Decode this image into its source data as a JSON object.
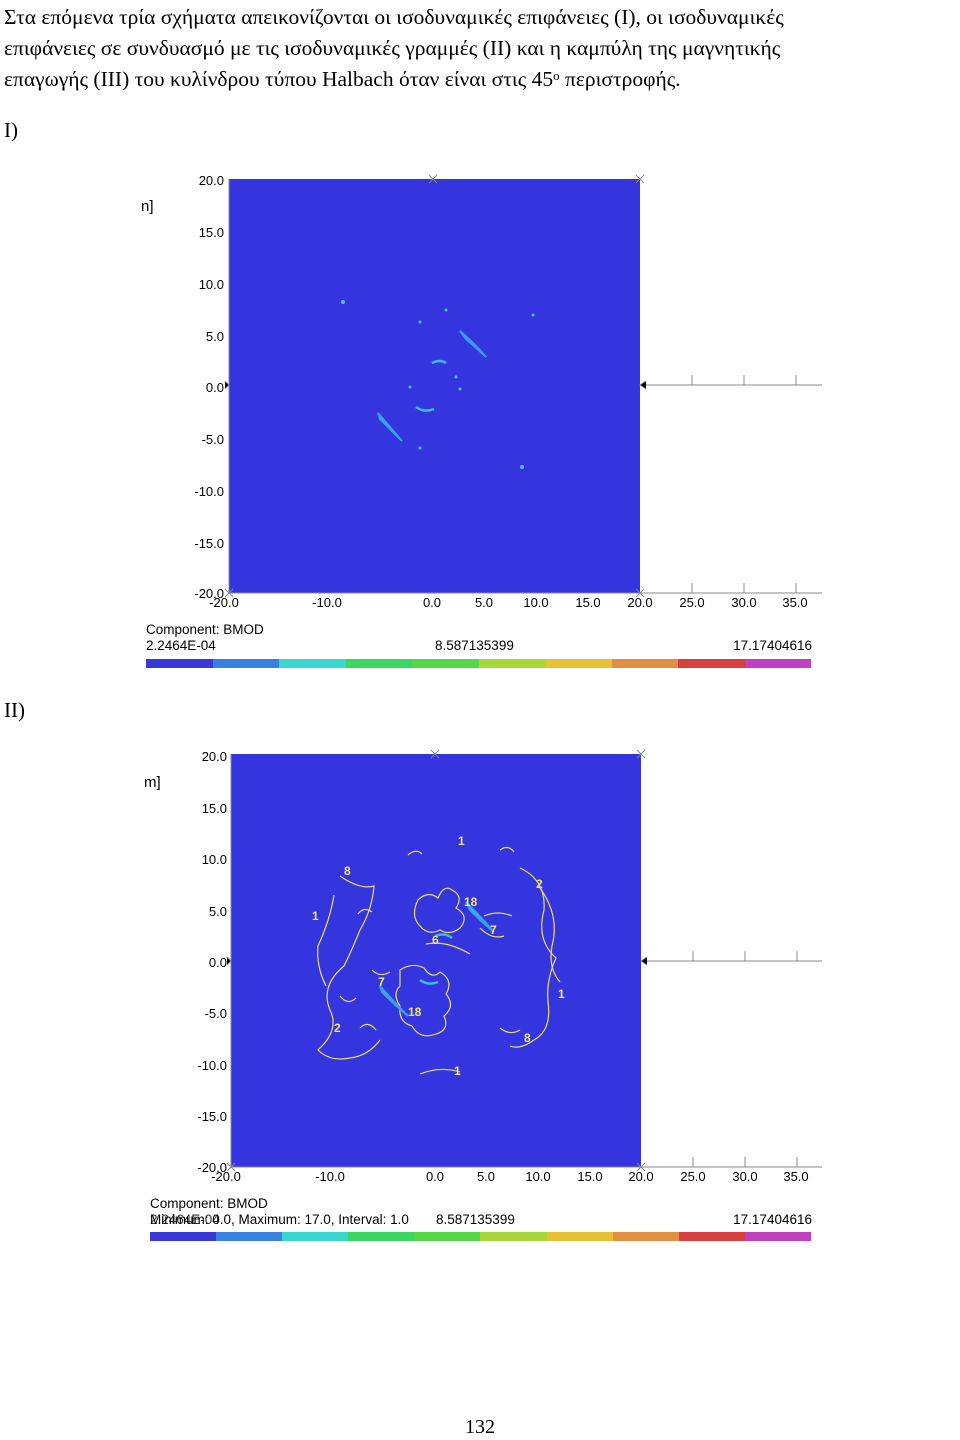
{
  "paragraph": {
    "lines": [
      "Στα επόμενα τρία σχήματα απεικονίζονται οι ισοδυναμικές επιφάνειες (I), οι ισοδυναμικές",
      "επιφάνειες σε συνδυασμό με τις ισοδυναμικές γραμμές (II) και η καμπύλη της μαγνητικής",
      "επαγωγής (III) του κυλίνδρου τύπου Halbach όταν είναι στις 45"
    ],
    "superscript": "ο",
    "line3_suffix": " περιστροφής."
  },
  "labels": {
    "fig1": "I)",
    "fig2": "II)"
  },
  "plots": {
    "y_unit_fragment_1": "n]",
    "y_unit_fragment_2": "m]",
    "y_ticks": [
      "20.0",
      "15.0",
      "10.0",
      "5.0",
      "0.0",
      "-5.0",
      "-10.0",
      "-15.0",
      "-20.0"
    ],
    "x_ticks": [
      "-20.0",
      "-10.0",
      "0.0",
      "5.0",
      "10.0",
      "15.0",
      "20.0",
      "25.0",
      "30.0",
      "35.0"
    ],
    "fig1": {
      "component": "Component: BMOD",
      "min": "2.2464E-04",
      "mid": "8.587135399",
      "max": "17.17404616"
    },
    "fig2": {
      "component": "Component: BMOD",
      "min_line": "Minimum: 0.0, Maximum: 17.0, Interval: 1.0",
      "min_value": "2.2464E-04",
      "mid": "8.587135399",
      "max": "17.17404616"
    },
    "contour_labels": [
      "1",
      "8",
      "2",
      "1",
      "18",
      "7",
      "6",
      "7",
      "1",
      "2",
      "18",
      "8",
      "1",
      "2"
    ]
  },
  "colors": {
    "plot_bg": "#3535e0",
    "scale": [
      "#3838d8",
      "#3a80e0",
      "#38d8d0",
      "#3ad860",
      "#55d848",
      "#a8d838",
      "#e8c038",
      "#e09040",
      "#d84040",
      "#c040c0"
    ]
  },
  "page_number": "132"
}
